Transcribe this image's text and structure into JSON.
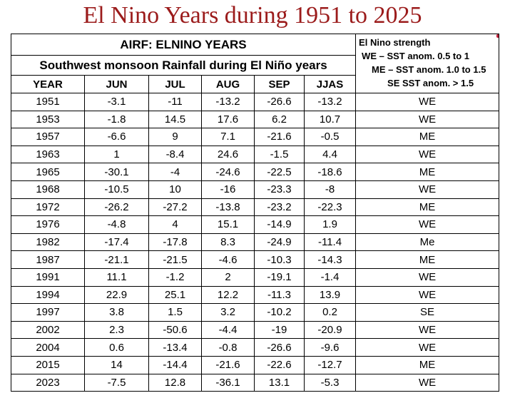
{
  "title": "El Nino Years during 1951 to 2025",
  "table": {
    "header_main": "AIRF: ELNINO YEARS",
    "header_sub": "Southwest monsoon Rainfall  during El Niño years",
    "strength_legend": [
      "El Nino strength",
      "WE – SST anom. 0.5 to 1",
      "ME – SST anom. 1.0 to 1.5",
      "SE SST anom. > 1.5"
    ],
    "columns": [
      "YEAR",
      "JUN",
      "JUL",
      "AUG",
      "SEP",
      "JJAS"
    ],
    "rows": [
      [
        "1951",
        "-3.1",
        "-11",
        "-13.2",
        "-26.6",
        "-13.2",
        "WE"
      ],
      [
        "1953",
        "-1.8",
        "14.5",
        "17.6",
        "6.2",
        "10.7",
        "WE"
      ],
      [
        "1957",
        "-6.6",
        "9",
        "7.1",
        "-21.6",
        "-0.5",
        "ME"
      ],
      [
        "1963",
        "1",
        "-8.4",
        "24.6",
        "-1.5",
        "4.4",
        "WE"
      ],
      [
        "1965",
        "-30.1",
        "-4",
        "-24.6",
        "-22.5",
        "-18.6",
        "ME"
      ],
      [
        "1968",
        "-10.5",
        "10",
        "-16",
        "-23.3",
        "-8",
        "WE"
      ],
      [
        "1972",
        "-26.2",
        "-27.2",
        "-13.8",
        "-23.2",
        "-22.3",
        "ME"
      ],
      [
        "1976",
        "-4.8",
        "4",
        "15.1",
        "-14.9",
        "1.9",
        "WE"
      ],
      [
        "1982",
        "-17.4",
        "-17.8",
        "8.3",
        "-24.9",
        "-11.4",
        "Me"
      ],
      [
        "1987",
        "-21.1",
        "-21.5",
        "-4.6",
        "-10.3",
        "-14.3",
        "ME"
      ],
      [
        "1991",
        "11.1",
        "-1.2",
        "2",
        "-19.1",
        "-1.4",
        "WE"
      ],
      [
        "1994",
        "22.9",
        "25.1",
        "12.2",
        "-11.3",
        "13.9",
        "WE"
      ],
      [
        "1997",
        "3.8",
        "1.5",
        "3.2",
        "-10.2",
        "0.2",
        "SE"
      ],
      [
        "2002",
        "2.3",
        "-50.6",
        "-4.4",
        "-19",
        "-20.9",
        "WE"
      ],
      [
        "2004",
        "0.6",
        "-13.4",
        "-0.8",
        "-26.6",
        "-9.6",
        "WE"
      ],
      [
        "2015",
        "14",
        "-14.4",
        "-21.6",
        "-22.6",
        "-12.7",
        "ME"
      ],
      [
        "2023",
        "-7.5",
        "12.8",
        "-36.1",
        "13.1",
        "-5.3",
        "WE"
      ]
    ]
  }
}
